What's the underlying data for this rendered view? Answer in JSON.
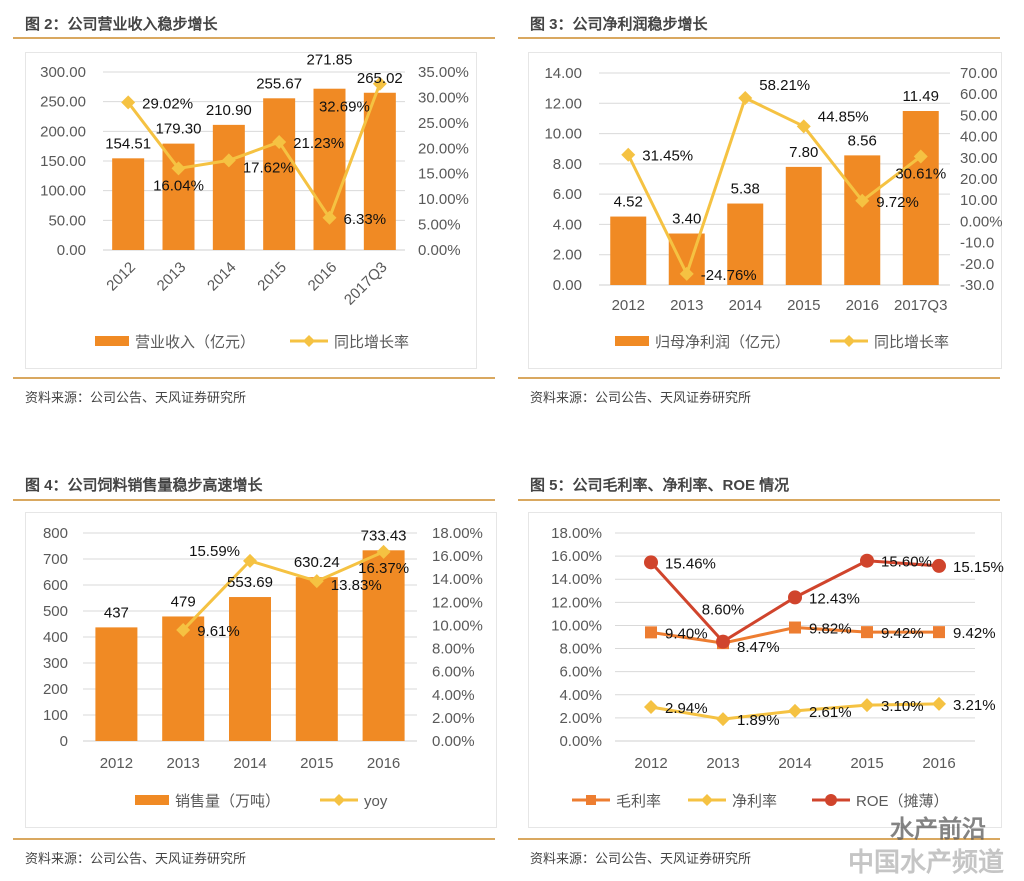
{
  "colors": {
    "bar": "#F08A24",
    "yoy_line": "#F5C242",
    "gross_margin": "#ED7D31",
    "net_margin": "#F5C242",
    "roe": "#D0442C",
    "rule": "#D9A860",
    "grid": "#D9D9D9"
  },
  "panels": [
    {
      "title": "图 2：公司营业收入稳步增长",
      "source": "资料来源：公司公告、天风证券研究所"
    },
    {
      "title": "图 3：公司净利润稳步增长",
      "source": "资料来源：公司公告、天风证券研究所"
    },
    {
      "title": "图 4：公司饲料销售量稳步高速增长",
      "source": "资料来源：公司公告、天风证券研究所"
    },
    {
      "title": "图 5：公司毛利率、净利率、ROE 情况",
      "source": "资料来源：公司公告、天风证券研究所"
    }
  ],
  "watermark": {
    "line1": "水产前沿",
    "line2": "中国水产频道"
  },
  "chart_data": [
    {
      "type": "bar+line",
      "categories": [
        "2012",
        "2013",
        "2014",
        "2015",
        "2016",
        "2017Q3"
      ],
      "x_labels_rotated": true,
      "left_axis": {
        "range": [
          0,
          300
        ],
        "ticks": [
          0,
          50,
          100,
          150,
          200,
          250,
          300
        ],
        "tick_labels": [
          "0.00",
          "50.00",
          "100.00",
          "150.00",
          "200.00",
          "250.00",
          "300.00"
        ]
      },
      "right_axis": {
        "range": [
          0,
          35
        ],
        "ticks": [
          0,
          5,
          10,
          15,
          20,
          25,
          30,
          35
        ],
        "tick_labels": [
          "0.00%",
          "5.00%",
          "10.00%",
          "15.00%",
          "20.00%",
          "25.00%",
          "30.00%",
          "35.00%"
        ]
      },
      "grid": true,
      "legend_position": "bottom",
      "series": [
        {
          "name": "营业收入（亿元）",
          "kind": "bar",
          "axis": "left",
          "values": [
            154.51,
            179.3,
            210.9,
            255.67,
            271.85,
            265.02
          ],
          "labels": [
            "154.51",
            "179.30",
            "210.90",
            "255.67",
            "271.85",
            "265.02"
          ]
        },
        {
          "name": "同比增长率",
          "kind": "line",
          "marker": "diamond",
          "axis": "right",
          "values": [
            29.02,
            16.04,
            17.62,
            21.23,
            6.33,
            32.69
          ],
          "labels": [
            "29.02%",
            "16.04%",
            "17.62%",
            "21.23%",
            "6.33%",
            "32.69%"
          ]
        }
      ]
    },
    {
      "type": "bar+line",
      "categories": [
        "2012",
        "2013",
        "2014",
        "2015",
        "2016",
        "2017Q3"
      ],
      "x_labels_rotated": false,
      "left_axis": {
        "range": [
          0,
          14
        ],
        "ticks": [
          0,
          2,
          4,
          6,
          8,
          10,
          12,
          14
        ],
        "tick_labels": [
          "0.00",
          "2.00",
          "4.00",
          "6.00",
          "8.00",
          "10.00",
          "12.00",
          "14.00"
        ]
      },
      "right_axis": {
        "range": [
          -30,
          70
        ],
        "ticks": [
          -30,
          -20,
          -10,
          0,
          10,
          20,
          30,
          40,
          50,
          60,
          70
        ],
        "tick_labels": [
          "-30.0",
          "-20.0",
          "-10.0",
          "0.00%",
          "10.00",
          "20.00",
          "30.00",
          "40.00",
          "50.00",
          "60.00",
          "70.00"
        ]
      },
      "grid": true,
      "legend_position": "bottom",
      "series": [
        {
          "name": "归母净利润（亿元）",
          "kind": "bar",
          "axis": "left",
          "values": [
            4.52,
            3.4,
            5.38,
            7.8,
            8.56,
            11.49
          ],
          "labels": [
            "4.52",
            "3.40",
            "5.38",
            "7.80",
            "8.56",
            "11.49"
          ]
        },
        {
          "name": "同比增长率",
          "kind": "line",
          "marker": "diamond",
          "axis": "right",
          "values": [
            31.45,
            -24.76,
            58.21,
            44.85,
            9.72,
            30.61
          ],
          "labels": [
            "31.45%",
            "-24.76%",
            "58.21%",
            "44.85%",
            "9.72%",
            "30.61%"
          ]
        }
      ]
    },
    {
      "type": "bar+line",
      "categories": [
        "2012",
        "2013",
        "2014",
        "2015",
        "2016"
      ],
      "x_labels_rotated": false,
      "left_axis": {
        "range": [
          0,
          800
        ],
        "ticks": [
          0,
          100,
          200,
          300,
          400,
          500,
          600,
          700,
          800
        ],
        "tick_labels": [
          "0",
          "100",
          "200",
          "300",
          "400",
          "500",
          "600",
          "700",
          "800"
        ]
      },
      "right_axis": {
        "range": [
          0,
          18
        ],
        "ticks": [
          0,
          2,
          4,
          6,
          8,
          10,
          12,
          14,
          16,
          18
        ],
        "tick_labels": [
          "0.00%",
          "2.00%",
          "4.00%",
          "6.00%",
          "8.00%",
          "10.00%",
          "12.00%",
          "14.00%",
          "16.00%",
          "18.00%"
        ]
      },
      "grid": true,
      "legend_position": "bottom",
      "series": [
        {
          "name": "销售量（万吨）",
          "kind": "bar",
          "axis": "left",
          "values": [
            437,
            479,
            553.69,
            630.24,
            733.43
          ],
          "labels": [
            "437",
            "479",
            "553.69",
            "630.24",
            "733.43"
          ]
        },
        {
          "name": "yoy",
          "kind": "line",
          "marker": "diamond",
          "axis": "right",
          "values": [
            null,
            9.61,
            15.59,
            13.83,
            16.37
          ],
          "labels": [
            null,
            "9.61%",
            "15.59%",
            "13.83%",
            "16.37%"
          ]
        }
      ]
    },
    {
      "type": "line",
      "categories": [
        "2012",
        "2013",
        "2014",
        "2015",
        "2016"
      ],
      "x_labels_rotated": false,
      "left_axis": {
        "range": [
          0,
          18
        ],
        "ticks": [
          0,
          2,
          4,
          6,
          8,
          10,
          12,
          14,
          16,
          18
        ],
        "tick_labels": [
          "0.00%",
          "2.00%",
          "4.00%",
          "6.00%",
          "8.00%",
          "10.00%",
          "12.00%",
          "14.00%",
          "16.00%",
          "18.00%"
        ]
      },
      "grid": true,
      "legend_position": "bottom",
      "series": [
        {
          "name": "毛利率",
          "kind": "line",
          "marker": "square",
          "axis": "left",
          "values": [
            9.4,
            8.47,
            9.82,
            9.42,
            9.42
          ],
          "labels": [
            "9.40%",
            "8.47%",
            "9.82%",
            "9.42%",
            "9.42%"
          ]
        },
        {
          "name": "净利率",
          "kind": "line",
          "marker": "diamond",
          "axis": "left",
          "values": [
            2.94,
            1.89,
            2.61,
            3.1,
            3.21
          ],
          "labels": [
            "2.94%",
            "1.89%",
            "2.61%",
            "3.10%",
            "3.21%"
          ]
        },
        {
          "name": "ROE（摊薄）",
          "kind": "line",
          "marker": "circle",
          "axis": "left",
          "values": [
            15.46,
            8.6,
            12.43,
            15.6,
            15.15
          ],
          "labels": [
            "15.46%",
            "8.60%",
            "12.43%",
            "15.60%",
            "15.15%"
          ]
        }
      ]
    }
  ]
}
